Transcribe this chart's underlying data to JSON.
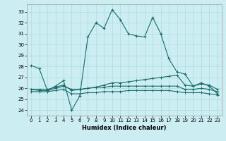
{
  "xlabel": "Humidex (Indice chaleur)",
  "bg_color": "#cceef2",
  "grid_color": "#aadddd",
  "line_color": "#1a6b6b",
  "xlim": [
    -0.5,
    23.5
  ],
  "ylim": [
    23.5,
    33.7
  ],
  "yticks": [
    24,
    25,
    26,
    27,
    28,
    29,
    30,
    31,
    32,
    33
  ],
  "xticks": [
    0,
    1,
    2,
    3,
    4,
    5,
    6,
    7,
    8,
    9,
    10,
    11,
    12,
    13,
    14,
    15,
    16,
    17,
    18,
    19,
    20,
    21,
    22,
    23
  ],
  "series1_x": [
    0,
    1,
    2,
    3,
    4,
    5,
    6,
    7,
    8,
    9,
    10,
    11,
    12,
    13,
    14,
    15,
    16,
    17,
    18,
    19,
    20,
    21,
    22,
    23
  ],
  "series1_y": [
    28.1,
    27.8,
    25.8,
    26.2,
    26.7,
    24.0,
    25.3,
    30.7,
    32.0,
    31.5,
    33.2,
    32.3,
    31.0,
    30.8,
    30.7,
    32.5,
    31.0,
    28.7,
    27.5,
    27.3,
    26.2,
    26.5,
    26.2,
    25.5
  ],
  "series2_x": [
    0,
    1,
    2,
    3,
    4,
    5,
    6,
    7,
    8,
    9,
    10,
    11,
    12,
    13,
    14,
    15,
    16,
    17,
    18,
    19,
    20,
    21,
    22,
    23
  ],
  "series2_y": [
    25.9,
    25.9,
    25.9,
    26.1,
    26.3,
    25.8,
    25.9,
    26.0,
    26.1,
    26.3,
    26.5,
    26.5,
    26.6,
    26.7,
    26.8,
    26.9,
    27.0,
    27.1,
    27.2,
    26.3,
    26.2,
    26.4,
    26.3,
    25.9
  ],
  "series3_x": [
    0,
    1,
    2,
    3,
    4,
    5,
    6,
    7,
    8,
    9,
    10,
    11,
    12,
    13,
    14,
    15,
    16,
    17,
    18,
    19,
    20,
    21,
    22,
    23
  ],
  "series3_y": [
    25.9,
    25.8,
    25.8,
    26.0,
    26.2,
    25.9,
    25.9,
    26.0,
    26.1,
    26.1,
    26.2,
    26.2,
    26.2,
    26.2,
    26.2,
    26.2,
    26.2,
    26.2,
    26.2,
    25.9,
    25.9,
    26.0,
    25.9,
    25.7
  ],
  "series4_x": [
    0,
    1,
    2,
    3,
    4,
    5,
    6,
    7,
    8,
    9,
    10,
    11,
    12,
    13,
    14,
    15,
    16,
    17,
    18,
    19,
    20,
    21,
    22,
    23
  ],
  "series4_y": [
    25.7,
    25.7,
    25.7,
    25.8,
    25.9,
    25.5,
    25.5,
    25.6,
    25.6,
    25.7,
    25.7,
    25.7,
    25.8,
    25.8,
    25.8,
    25.8,
    25.8,
    25.8,
    25.7,
    25.6,
    25.6,
    25.6,
    25.5,
    25.4
  ]
}
